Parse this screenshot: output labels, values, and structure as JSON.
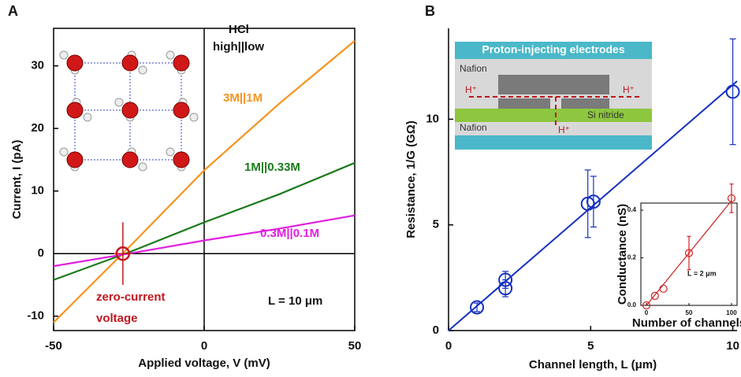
{
  "chart_data": [
    {
      "type": "line",
      "panel": "A",
      "x_label": "Applied voltage, V (mV)",
      "y_label": "Current, I (pA)",
      "xlim": [
        -50,
        50
      ],
      "ylim": [
        -12.3,
        36
      ],
      "xticks": [
        -50,
        0,
        50
      ],
      "yticks": [
        -10,
        0,
        10,
        20,
        30
      ],
      "x": [
        -50,
        -25,
        0,
        25,
        50
      ],
      "series": [
        {
          "name": "3M||1M",
          "color": "#f7931e",
          "values": [
            -11,
            1,
            13.3,
            24,
            34
          ]
        },
        {
          "name": "1M||0.33M",
          "color": "#1a7a1a",
          "values": [
            -4.2,
            0.2,
            5,
            9.5,
            14.5
          ]
        },
        {
          "name": "0.3M||0.1M",
          "color": "#e020e0",
          "values": [
            -2,
            0,
            2.1,
            4,
            6.1
          ]
        }
      ],
      "marker": {
        "x": -27,
        "y": 0,
        "xerr": 3,
        "yerr": 5,
        "color": "#c0181f"
      },
      "annotations": [
        "HCl",
        "high||low",
        "L = 10 μm",
        "zero-current",
        "voltage"
      ]
    },
    {
      "type": "scatter",
      "panel": "B",
      "x_label": "Channel length, L (μm)",
      "y_label": "Resistance, 1/G (GΩ)",
      "xlim": [
        0,
        10.15
      ],
      "ylim": [
        0,
        14.3
      ],
      "xticks": [
        0,
        5,
        10
      ],
      "yticks": [
        0,
        5,
        10
      ],
      "color": "#1530c0",
      "x": [
        1,
        2,
        2,
        4.9,
        5.1,
        10
      ],
      "values": [
        1.1,
        2,
        2.4,
        6,
        6.1,
        11.3
      ],
      "yerr": [
        0.2,
        0.4,
        0.4,
        1.6,
        1.2,
        2.5
      ],
      "fit": {
        "x": [
          0,
          10.15
        ],
        "values": [
          0,
          11.8
        ]
      },
      "schematic_labels": [
        "Proton-injecting electrodes",
        "Nafion",
        "Nafion",
        "Si nitride",
        "H⁺",
        "H⁺",
        "H⁺"
      ]
    },
    {
      "type": "scatter",
      "x_label": "Number of channels",
      "y_label": "Conductance (nS)",
      "xlim": [
        -6.5,
        106.5
      ],
      "ylim": [
        0,
        0.43
      ],
      "xticks": [
        0,
        50,
        100
      ],
      "yticks": [
        {
          "value": 0,
          "label": "0.0"
        },
        {
          "value": 0.2,
          "label": "0.2"
        },
        {
          "value": 0.4,
          "label": "0.4"
        }
      ],
      "color": "#d02020",
      "x": [
        0,
        10,
        20,
        50,
        100
      ],
      "values": [
        0,
        0.04,
        0.07,
        0.22,
        0.45
      ],
      "yerr": [
        0,
        0,
        0,
        0.07,
        0.06
      ],
      "fit": {
        "x": [
          0,
          100
        ],
        "values": [
          0,
          0.44
        ]
      },
      "annotations": [
        "L = 2 μm"
      ]
    }
  ]
}
